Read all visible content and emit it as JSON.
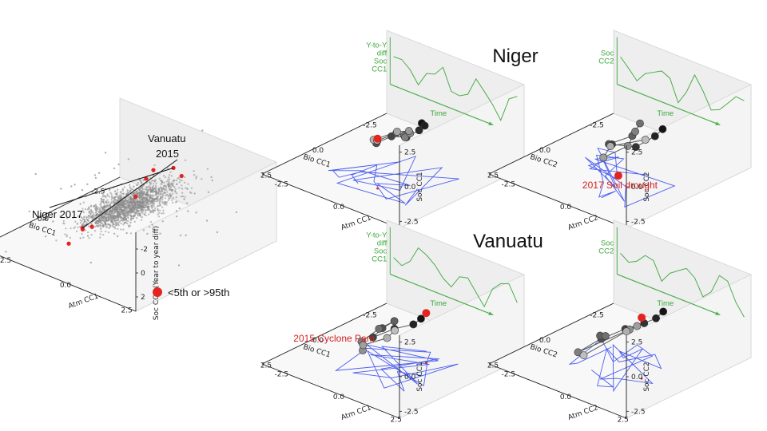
{
  "colors": {
    "extreme": "#e32420",
    "cloud": "#8a8a8a",
    "green_time": "#4cae4c",
    "blue_trace": "#4a5df0",
    "pane_left": "#eeeeee",
    "pane_right": "#f4f4f4",
    "pane_floor": "#f8f8f8"
  },
  "legend": {
    "label": "<5th or >95th"
  },
  "chart_data": [
    {
      "panel": "overview-3d-scatter",
      "type": "scatter",
      "xlabel": "Bio CC1",
      "ylabel": "Atm CC1",
      "zlabel": "Soc CC1 (Year to year diff)",
      "x_ticks": [
        "-2.5",
        "0.0",
        "2.5"
      ],
      "y_ticks": [
        "-2.5",
        "0.0",
        "2.5"
      ],
      "z_ticks": [
        "-2",
        "0",
        "2"
      ],
      "annotations": [
        {
          "lines": [
            "Vanuatu",
            "2015"
          ]
        },
        {
          "lines": [
            "Niger 2017"
          ]
        }
      ],
      "extreme_points": [
        {
          "x": -2.3,
          "y": -0.2,
          "z": 0.9
        },
        {
          "x": -2.0,
          "y": 0.4,
          "z": 1.0
        },
        {
          "x": -1.5,
          "y": -0.6,
          "z": 0.4
        },
        {
          "x": -0.8,
          "y": -0.4,
          "z": -0.3
        },
        {
          "x": 1.3,
          "y": -0.3,
          "z": -0.8
        },
        {
          "x": 1.5,
          "y": -0.5,
          "z": -1.0
        },
        {
          "x": 2.4,
          "y": 0.3,
          "z": 0.6
        },
        {
          "x": 2.8,
          "y": 0.1,
          "z": -0.5
        },
        {
          "x": -2.5,
          "y": -1.2,
          "z": -0.3
        }
      ]
    },
    {
      "panel": "niger-cc1",
      "type": "scatter",
      "title": "Niger",
      "xlabel": "Bio CC1",
      "ylabel": "Atm CC1",
      "zlabel": "Soc CC1",
      "x_ticks": [
        "-2.5",
        "0.0",
        "2.5"
      ],
      "y_ticks": [
        "-2.5",
        "0.0",
        "2.5"
      ],
      "z_ticks": [
        "2.5",
        "0.0",
        "-2.5"
      ],
      "wall_text": [
        "Y-to-Y",
        "diff",
        "Soc",
        "CC1"
      ],
      "time_label": "Time",
      "trajectory": [
        [
          -0.5,
          0.8,
          0.6
        ],
        [
          -0.2,
          1.2,
          0.9
        ],
        [
          0.4,
          1.5,
          1.2
        ],
        [
          0.9,
          1.4,
          1.0
        ],
        [
          1.4,
          1.2,
          1.3
        ],
        [
          1.8,
          0.9,
          0.9
        ],
        [
          1.2,
          0.4,
          0.3
        ],
        [
          0.5,
          0.6,
          0.5
        ],
        [
          -0.2,
          0.3,
          -0.4
        ],
        [
          -0.8,
          -0.2,
          -1.3
        ],
        [
          -0.6,
          0.2,
          -0.6
        ],
        [
          -0.1,
          0.6,
          0.2
        ],
        [
          0.8,
          0.9,
          1.0
        ],
        [
          1.6,
          0.6,
          0.8
        ],
        [
          1.1,
          0.3,
          0.2
        ]
      ],
      "highlight": [
        1.3,
        0.5,
        0.6
      ]
    },
    {
      "panel": "niger-cc2",
      "type": "scatter",
      "xlabel": "Bio CC2",
      "ylabel": "Atm CC2",
      "zlabel": "Soc CC2",
      "x_ticks": [
        "-2.5",
        "0.0",
        "2.5"
      ],
      "y_ticks": [
        "-2.5",
        "0.0",
        "2.5"
      ],
      "z_ticks": [
        "2.5",
        "0.0",
        "-2.5"
      ],
      "wall_text": [
        "Soc",
        "CC2"
      ],
      "time_label": "Time",
      "red_label": "2017 Soil drought",
      "trajectory": [
        [
          -0.4,
          1.5,
          0.7
        ],
        [
          0.3,
          1.8,
          0.9
        ],
        [
          1.0,
          1.6,
          0.5
        ],
        [
          1.6,
          1.1,
          0.8
        ],
        [
          1.2,
          0.6,
          0.2
        ],
        [
          0.4,
          0.9,
          0.4
        ],
        [
          -0.3,
          0.6,
          0.6
        ],
        [
          0.7,
          1.3,
          1.2
        ],
        [
          1.5,
          1.7,
          1.0
        ],
        [
          1.9,
          1.0,
          0.0
        ],
        [
          0.9,
          0.4,
          -0.3
        ],
        [
          0.1,
          1.2,
          0.1
        ]
      ],
      "highlight": [
        0.3,
        0.2,
        -3.0
      ]
    },
    {
      "panel": "vanuatu-cc1",
      "type": "scatter",
      "title": "Vanuatu",
      "xlabel": "Bio CC1",
      "ylabel": "Atm CC1",
      "zlabel": "Soc CC1",
      "x_ticks": [
        "-2.5",
        "0.0",
        "2.5"
      ],
      "y_ticks": [
        "-2.5",
        "0.0",
        "2.5"
      ],
      "z_ticks": [
        "2.5",
        "0.0",
        "-2.5"
      ],
      "wall_text": [
        "Y-to-Y",
        "diff",
        "Soc",
        "CC1"
      ],
      "time_label": "Time",
      "red_label": "2015 Cyclone Pam",
      "trajectory": [
        [
          0.2,
          1.4,
          1.1
        ],
        [
          0.9,
          1.7,
          1.4
        ],
        [
          1.7,
          1.6,
          1.6
        ],
        [
          2.4,
          1.3,
          1.3
        ],
        [
          1.4,
          0.8,
          0.9
        ],
        [
          0.6,
          0.6,
          0.7
        ],
        [
          0.9,
          0.2,
          0.1
        ],
        [
          1.3,
          -0.2,
          -0.8
        ],
        [
          1.9,
          0.4,
          -0.6
        ],
        [
          1.0,
          -0.4,
          -1.4
        ],
        [
          0.4,
          0.1,
          -1.0
        ],
        [
          0.8,
          0.8,
          0.3
        ]
      ],
      "highlight": [
        -0.6,
        0.9,
        0.6
      ]
    },
    {
      "panel": "vanuatu-cc2",
      "type": "scatter",
      "xlabel": "Bio CC2",
      "ylabel": "Atm CC2",
      "zlabel": "Soc CC2",
      "x_ticks": [
        "-2.5",
        "0.0",
        "2.5"
      ],
      "y_ticks": [
        "-2.5",
        "0.0",
        "2.5"
      ],
      "z_ticks": [
        "2.5",
        "0.0",
        "-2.5"
      ],
      "wall_text": [
        "Soc",
        "CC2"
      ],
      "time_label": "Time",
      "trajectory": [
        [
          -1.2,
          0.8,
          0.2
        ],
        [
          -0.3,
          1.3,
          0.7
        ],
        [
          0.6,
          1.6,
          1.2
        ],
        [
          1.4,
          1.5,
          1.3
        ],
        [
          2.0,
          1.0,
          0.7
        ],
        [
          1.4,
          0.4,
          0.1
        ],
        [
          0.7,
          0.0,
          -0.7
        ],
        [
          1.8,
          -0.2,
          -1.2
        ],
        [
          0.2,
          0.6,
          -0.2
        ],
        [
          -0.6,
          0.2,
          -0.8
        ],
        [
          0.9,
          1.1,
          0.5
        ],
        [
          2.3,
          0.5,
          -0.6
        ]
      ],
      "highlight": [
        0.5,
        1.4,
        1.4
      ]
    }
  ]
}
